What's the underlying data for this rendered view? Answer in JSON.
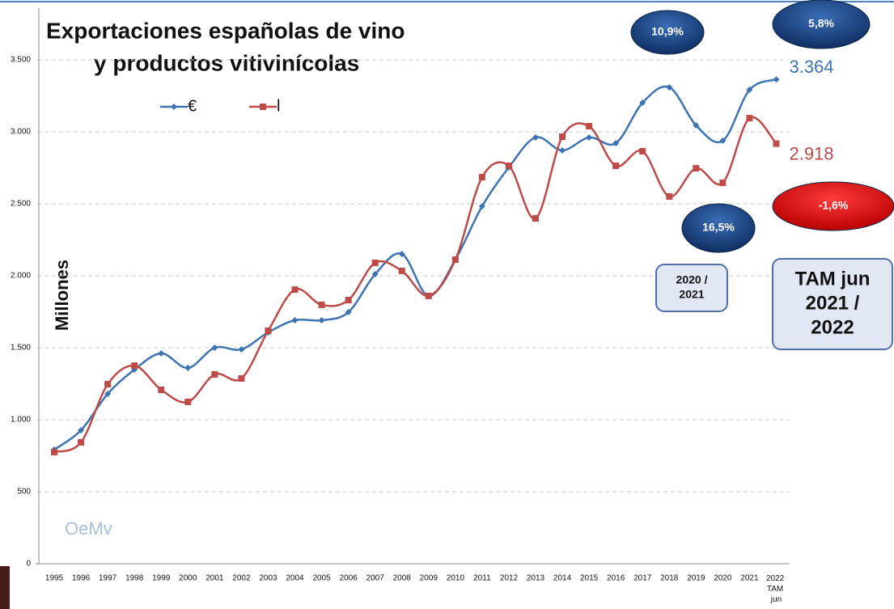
{
  "chart_data": {
    "type": "line",
    "title": [
      "Exportaciones españolas de vino",
      "y productos vitivinícolas"
    ],
    "y_label": "Millones",
    "categories": [
      "1995",
      "1996",
      "1997",
      "1998",
      "1999",
      "2000",
      "2001",
      "2002",
      "2003",
      "2004",
      "2005",
      "2006",
      "2007",
      "2008",
      "2009",
      "2010",
      "2011",
      "2012",
      "2013",
      "2014",
      "2015",
      "2016",
      "2017",
      "2018",
      "2019",
      "2020",
      "2021",
      "2022 TAM jun"
    ],
    "series": [
      {
        "name": "€",
        "color": "#3d73b3",
        "values": [
          792,
          927,
          1180,
          1348,
          1461,
          1360,
          1500,
          1489,
          1607,
          1691,
          1691,
          1747,
          2011,
          2152,
          1860,
          2112,
          2483,
          2753,
          2961,
          2871,
          2961,
          2921,
          3202,
          3309,
          3045,
          2938,
          3292,
          3364
        ],
        "value_labels": [
          null,
          null,
          null,
          null,
          null,
          null,
          null,
          null,
          null,
          null,
          null,
          null,
          null,
          null,
          null,
          null,
          null,
          null,
          null,
          null,
          null,
          null,
          null,
          null,
          null,
          null,
          null,
          "3.364"
        ]
      },
      {
        "name": "l",
        "color": "#be4b48",
        "values": [
          775,
          843,
          1247,
          1376,
          1208,
          1124,
          1315,
          1287,
          1618,
          1904,
          1798,
          1831,
          2090,
          2034,
          1860,
          2112,
          2685,
          2764,
          2399,
          2966,
          3039,
          2764,
          2865,
          2551,
          2747,
          2646,
          3095,
          2918
        ],
        "value_labels": [
          null,
          null,
          null,
          null,
          null,
          null,
          null,
          null,
          null,
          null,
          null,
          null,
          null,
          null,
          null,
          null,
          null,
          null,
          null,
          null,
          null,
          null,
          null,
          null,
          null,
          null,
          null,
          "2.918"
        ]
      }
    ],
    "ylim": [
      0,
      3500
    ],
    "yticks": [
      0,
      500,
      {
        "value": 1000,
        "label": "1.000"
      },
      {
        "value": 1500,
        "label": "1.500"
      },
      {
        "value": 2000,
        "label": "2.000"
      },
      {
        "value": 2500,
        "label": "2.500"
      },
      {
        "value": 3000,
        "label": "3.000"
      },
      {
        "value": 3500,
        "label": "3.500"
      }
    ],
    "grid": true,
    "watermark": "OeMv",
    "bubbles": [
      {
        "text": "10,9%",
        "color": "blue"
      },
      {
        "text": "5,8%",
        "color": "blue"
      },
      {
        "text": "16,5%",
        "color": "blue"
      },
      {
        "text": "-1,6%",
        "color": "red"
      }
    ],
    "boxes": [
      {
        "lines": [
          "2020 /",
          "2021"
        ]
      },
      {
        "lines": [
          "TAM jun",
          "2021 /",
          "2022"
        ]
      }
    ]
  }
}
